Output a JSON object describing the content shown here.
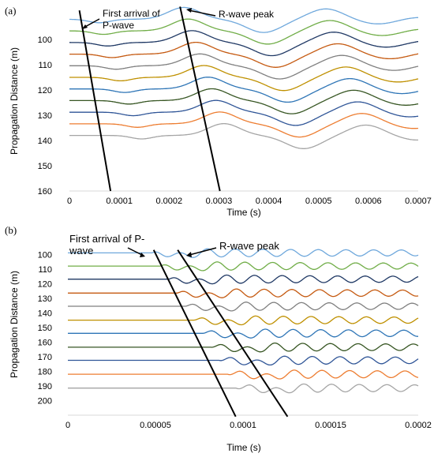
{
  "chart_data": [
    {
      "type": "line",
      "panel_label": "(a)",
      "xlabel": "Time (s)",
      "ylabel": "Propagation Distance (m)",
      "xlim": [
        0,
        0.0007
      ],
      "ylim": [
        160,
        90
      ],
      "x_ticks": [
        "0",
        "0.0001",
        "0.0002",
        "0.0003",
        "0.0004",
        "0.0005",
        "0.0006",
        "0.0007"
      ],
      "y_ticks": [
        "100",
        "110",
        "120",
        "130",
        "140",
        "150",
        "160"
      ],
      "grid": false,
      "legend": "none",
      "series_colors": [
        "#6fa8dc",
        "#70ad47",
        "#1f3864",
        "#c55a11",
        "#7f7f7f",
        "#bf9000",
        "#2e75b6",
        "#375623",
        "#2f5597",
        "#ed7d31",
        "#a5a5a5"
      ],
      "traces": {
        "offsets_m": [
          92,
          96.6,
          101.2,
          105.8,
          110.4,
          115,
          119.6,
          124.2,
          128.8,
          133.4,
          138
        ],
        "t_first": 2e-05,
        "t_peak": 0.00023,
        "t_first_step": 8.5e-06,
        "t_peak_step": 8e-06,
        "amplitude_m": 5.5
      },
      "annotations": [
        {
          "text": [
            "First arrival of",
            "P-wave"
          ],
          "line": [
            [
              2e-05,
              88.5
            ],
            [
              8.25e-05,
              160
            ]
          ]
        },
        {
          "text": [
            "R-wave peak"
          ],
          "line": [
            [
              0.000222,
              87
            ],
            [
              0.000302,
              160
            ]
          ]
        }
      ]
    },
    {
      "type": "line",
      "panel_label": "(b)",
      "xlabel": "Time (s)",
      "ylabel": "Propagation Distance (m)",
      "xlim": [
        0,
        0.0002
      ],
      "ylim": [
        210,
        95
      ],
      "x_ticks": [
        "0",
        "0.00005",
        "0.0001",
        "0.00015",
        "0.0002"
      ],
      "y_ticks": [
        "100",
        "110",
        "120",
        "130",
        "140",
        "150",
        "160",
        "170",
        "180",
        "190",
        "200"
      ],
      "grid": false,
      "legend": "none",
      "series_colors": [
        "#6fa8dc",
        "#70ad47",
        "#1f3864",
        "#c55a11",
        "#7f7f7f",
        "#bf9000",
        "#2e75b6",
        "#375623",
        "#2f5597",
        "#ed7d31",
        "#a5a5a5"
      ],
      "traces": {
        "offsets_m": [
          99,
          108,
          117,
          126.5,
          135.5,
          145,
          154,
          163.5,
          172.5,
          182,
          191.5
        ],
        "t_first": 4.8e-05,
        "t_peak": 6.4e-05,
        "t_first_step": 4.8e-06,
        "t_peak_step": 5.5e-06,
        "amplitude_m": 3.4
      },
      "annotations": [
        {
          "text": [
            "First arrival of P-",
            "wave"
          ],
          "line": [
            [
              4.9e-05,
              97
            ],
            [
              9.58e-05,
              211
            ]
          ]
        },
        {
          "text": [
            "R-wave peak"
          ],
          "line": [
            [
              6.27e-05,
              97
            ],
            [
              0.0001254,
              211
            ]
          ]
        }
      ]
    }
  ]
}
